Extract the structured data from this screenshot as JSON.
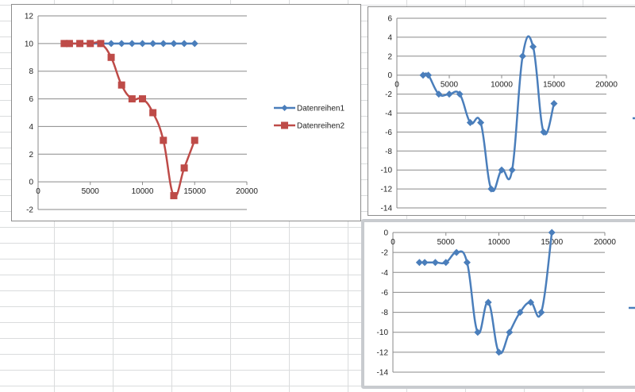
{
  "colors": {
    "series1": "#4a7ebb",
    "series2": "#be4b48",
    "grid": "#888888"
  },
  "chart_data": [
    {
      "type": "line",
      "title": "",
      "xlabel": "",
      "ylabel": "",
      "xlim": [
        0,
        20000
      ],
      "ylim": [
        -2,
        12
      ],
      "xticks": [
        "0",
        "5000",
        "10000",
        "15000",
        "20000"
      ],
      "yticks": [
        "-2",
        "0",
        "2",
        "4",
        "6",
        "8",
        "10",
        "12"
      ],
      "legend_position": "right",
      "x": [
        2500,
        3000,
        4000,
        5000,
        6000,
        7000,
        8000,
        9000,
        10000,
        11000,
        12000,
        13000,
        14000,
        15000
      ],
      "series": [
        {
          "name": "Datenreihen1",
          "marker": "diamond",
          "values": [
            10,
            10,
            10,
            10,
            10,
            10,
            10,
            10,
            10,
            10,
            10,
            10,
            10,
            10
          ]
        },
        {
          "name": "Datenreihen2",
          "marker": "square",
          "values": [
            10,
            10,
            10,
            10,
            10,
            9,
            7,
            6,
            6,
            5,
            3,
            -1,
            1,
            3
          ]
        }
      ]
    },
    {
      "type": "line",
      "title": "",
      "xlabel": "",
      "ylabel": "",
      "xlim": [
        0,
        20000
      ],
      "ylim": [
        -14,
        6
      ],
      "xticks": [
        "0",
        "5000",
        "10000",
        "15000",
        "20000"
      ],
      "yticks": [
        "-14",
        "-12",
        "-10",
        "-8",
        "-6",
        "-4",
        "-2",
        "0",
        "2",
        "4",
        "6"
      ],
      "x": [
        2500,
        3000,
        4000,
        5000,
        6000,
        7000,
        8000,
        9000,
        10000,
        11000,
        12000,
        13000,
        14000,
        15000
      ],
      "series": [
        {
          "name": "",
          "marker": "diamond",
          "values": [
            0,
            0,
            -2,
            -2,
            -2,
            -5,
            -5,
            -12,
            -10,
            -10,
            2,
            3,
            -6,
            -3
          ]
        }
      ]
    },
    {
      "type": "line",
      "title": "",
      "xlabel": "",
      "ylabel": "",
      "xlim": [
        0,
        20000
      ],
      "ylim": [
        -14,
        0
      ],
      "xticks": [
        "0",
        "5000",
        "10000",
        "15000",
        "20000"
      ],
      "yticks": [
        "-14",
        "-12",
        "-10",
        "-8",
        "-6",
        "-4",
        "-2",
        "0"
      ],
      "x": [
        2500,
        3000,
        4000,
        5000,
        6000,
        7000,
        8000,
        9000,
        10000,
        11000,
        12000,
        13000,
        14000,
        15000
      ],
      "series": [
        {
          "name": "",
          "marker": "diamond",
          "values": [
            -3,
            -3,
            -3,
            -3,
            -2,
            -3,
            -10,
            -7,
            -12,
            -10,
            -8,
            -7,
            -8,
            0
          ]
        }
      ]
    }
  ]
}
